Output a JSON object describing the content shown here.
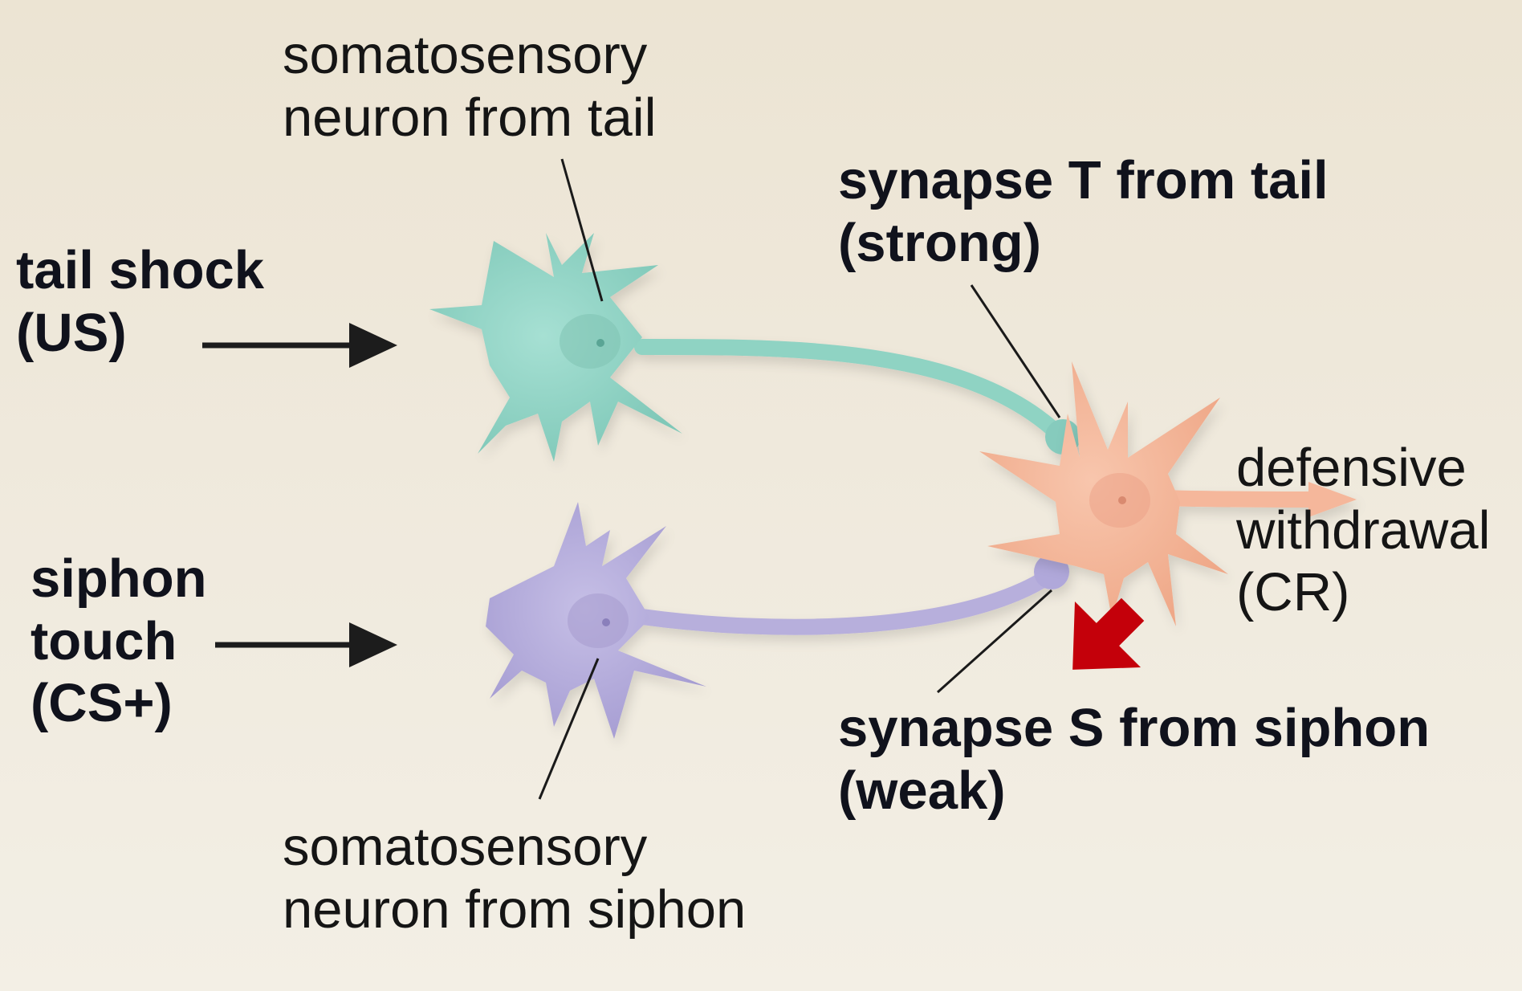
{
  "labels": {
    "tail_neuron": [
      "somatosensory",
      "neuron from tail"
    ],
    "siphon_neuron": [
      "somatosensory",
      "neuron from siphon"
    ],
    "tail_shock": [
      "tail shock",
      "(US)"
    ],
    "siphon_touch": [
      "siphon",
      "touch",
      "(CS+)"
    ],
    "synapse_t": [
      "synapse T from tail",
      "(strong)"
    ],
    "synapse_s": [
      "synapse S from siphon",
      "(weak)"
    ],
    "response": [
      "defensive",
      "withdrawal",
      "(CR)"
    ]
  },
  "colors": {
    "tail_neuron": "#8fd3c3",
    "siphon_neuron": "#b7afdc",
    "motor_neuron": "#f5b79b",
    "arrow": "#1c1c1c",
    "highlight_arrow": "#c4000a"
  }
}
